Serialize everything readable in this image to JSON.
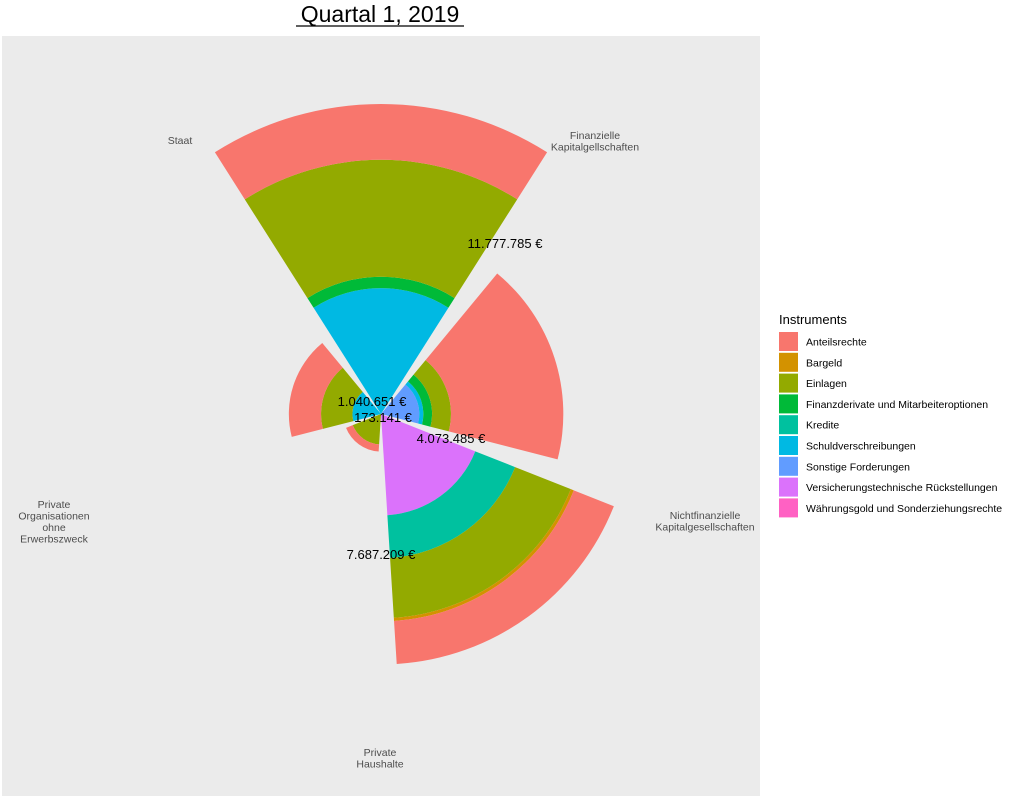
{
  "chart_data": {
    "type": "polar-stacked-bar",
    "title": "Quartal 1, 2019",
    "categories": [
      "Finanzielle\nKapitalgellschaften",
      "Nichtfinanzielle\nKapitalgesellschaften",
      "Private\nHaushalte",
      "Private\nOrganisationen\nohne\nErwerbszweck",
      "Staat"
    ],
    "totals_labels": [
      "11.777.785 €",
      "4.073.485 €",
      "7.687.209 €",
      "173.141 €",
      "1.040.651 €"
    ],
    "legend": {
      "title": "Instruments",
      "placement": "right",
      "items": [
        {
          "name": "Anteilsrechte",
          "color": "#F8766D"
        },
        {
          "name": "Bargeld",
          "color": "#D39200"
        },
        {
          "name": "Einlagen",
          "color": "#93AA00"
        },
        {
          "name": "Finanzderivate und Mitarbeiteroptionen",
          "color": "#00BA38"
        },
        {
          "name": "Kredite",
          "color": "#00C19F"
        },
        {
          "name": "Schuldverschreibungen",
          "color": "#00B9E3"
        },
        {
          "name": "Sonstige Forderungen",
          "color": "#619CFF"
        },
        {
          "name": "Versicherungstechnische Rückstellungen",
          "color": "#DB72FB"
        },
        {
          "name": "Währungsgold und Sonderziehungsrechte",
          "color": "#FF61C3"
        }
      ]
    },
    "stacks": [
      {
        "category": "Finanzielle\nKapitalgellschaften",
        "segments": [
          {
            "instrument": "Schuldverschreibungen",
            "value": 1940000
          },
          {
            "instrument": "Finanzderivate und Mitarbeiteroptionen",
            "value": 370000
          },
          {
            "instrument": "Einlagen",
            "value": 5610000
          },
          {
            "instrument": "Anteilsrechte",
            "value": 3857785
          }
        ]
      },
      {
        "category": "Nichtfinanzielle\nKapitalgesellschaften",
        "segments": [
          {
            "instrument": "Sonstige Forderungen",
            "value": 180000
          },
          {
            "instrument": "Schuldverschreibungen",
            "value": 40000
          },
          {
            "instrument": "Finanzderivate und Mitarbeiteroptionen",
            "value": 100000
          },
          {
            "instrument": "Einlagen",
            "value": 280000
          },
          {
            "instrument": "Anteilsrechte",
            "value": 3473485
          }
        ]
      },
      {
        "category": "Private\nHaushalte",
        "segments": [
          {
            "instrument": "Versicherungstechnische Rückstellungen",
            "value": 1260000
          },
          {
            "instrument": "Kredite",
            "value": 1290000
          },
          {
            "instrument": "Einlagen",
            "value": 2560000
          },
          {
            "instrument": "Bargeld",
            "value": 160000
          },
          {
            "instrument": "Anteilsrechte",
            "value": 2417209
          }
        ]
      },
      {
        "category": "Private\nOrganisationen\nohne\nErwerbszweck",
        "segments": [
          {
            "instrument": "Einlagen",
            "value": 113141
          },
          {
            "instrument": "Anteilsrechte",
            "value": 60000
          }
        ]
      },
      {
        "category": "Staat",
        "segments": [
          {
            "instrument": "Schuldverschreibungen",
            "value": 100000
          },
          {
            "instrument": "Einlagen",
            "value": 340651
          },
          {
            "instrument": "Anteilsrechte",
            "value": 600000
          }
        ]
      }
    ],
    "scale": "sqrt",
    "grid": false
  }
}
